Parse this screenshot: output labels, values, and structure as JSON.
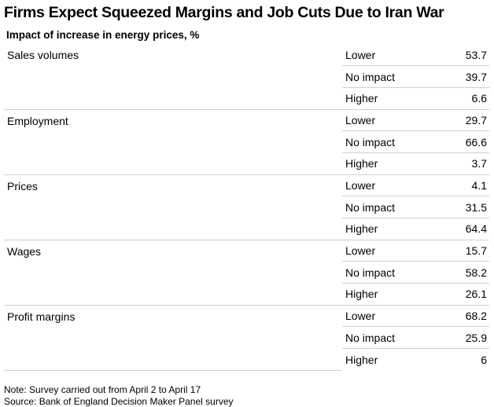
{
  "header": {
    "title": "Firms Expect Squeezed Margins and Job Cuts Due to Iran War",
    "subtitle": "Impact of increase in energy prices, %"
  },
  "table": {
    "groups": [
      {
        "label": "Sales volumes",
        "rows": [
          {
            "response": "Lower",
            "value": 53.7
          },
          {
            "response": "No impact",
            "value": 39.7
          },
          {
            "response": "Higher",
            "value": 6.6
          }
        ]
      },
      {
        "label": "Employment",
        "rows": [
          {
            "response": "Lower",
            "value": 29.7
          },
          {
            "response": "No impact",
            "value": 66.6
          },
          {
            "response": "Higher",
            "value": 3.7
          }
        ]
      },
      {
        "label": "Prices",
        "rows": [
          {
            "response": "Lower",
            "value": 4.1
          },
          {
            "response": "No impact",
            "value": 31.5
          },
          {
            "response": "Higher",
            "value": 64.4
          }
        ]
      },
      {
        "label": "Wages",
        "rows": [
          {
            "response": "Lower",
            "value": 15.7
          },
          {
            "response": "No impact",
            "value": 58.2
          },
          {
            "response": "Higher",
            "value": 26.1
          }
        ]
      },
      {
        "label": "Profit margins",
        "rows": [
          {
            "response": "Lower",
            "value": 68.2
          },
          {
            "response": "No impact",
            "value": 25.9
          },
          {
            "response": "Higher",
            "value": 6
          }
        ]
      }
    ]
  },
  "footer": {
    "note": "Note: Survey carried out from April 2 to April 17",
    "source": "Source: Bank of England Decision Maker Panel survey"
  }
}
